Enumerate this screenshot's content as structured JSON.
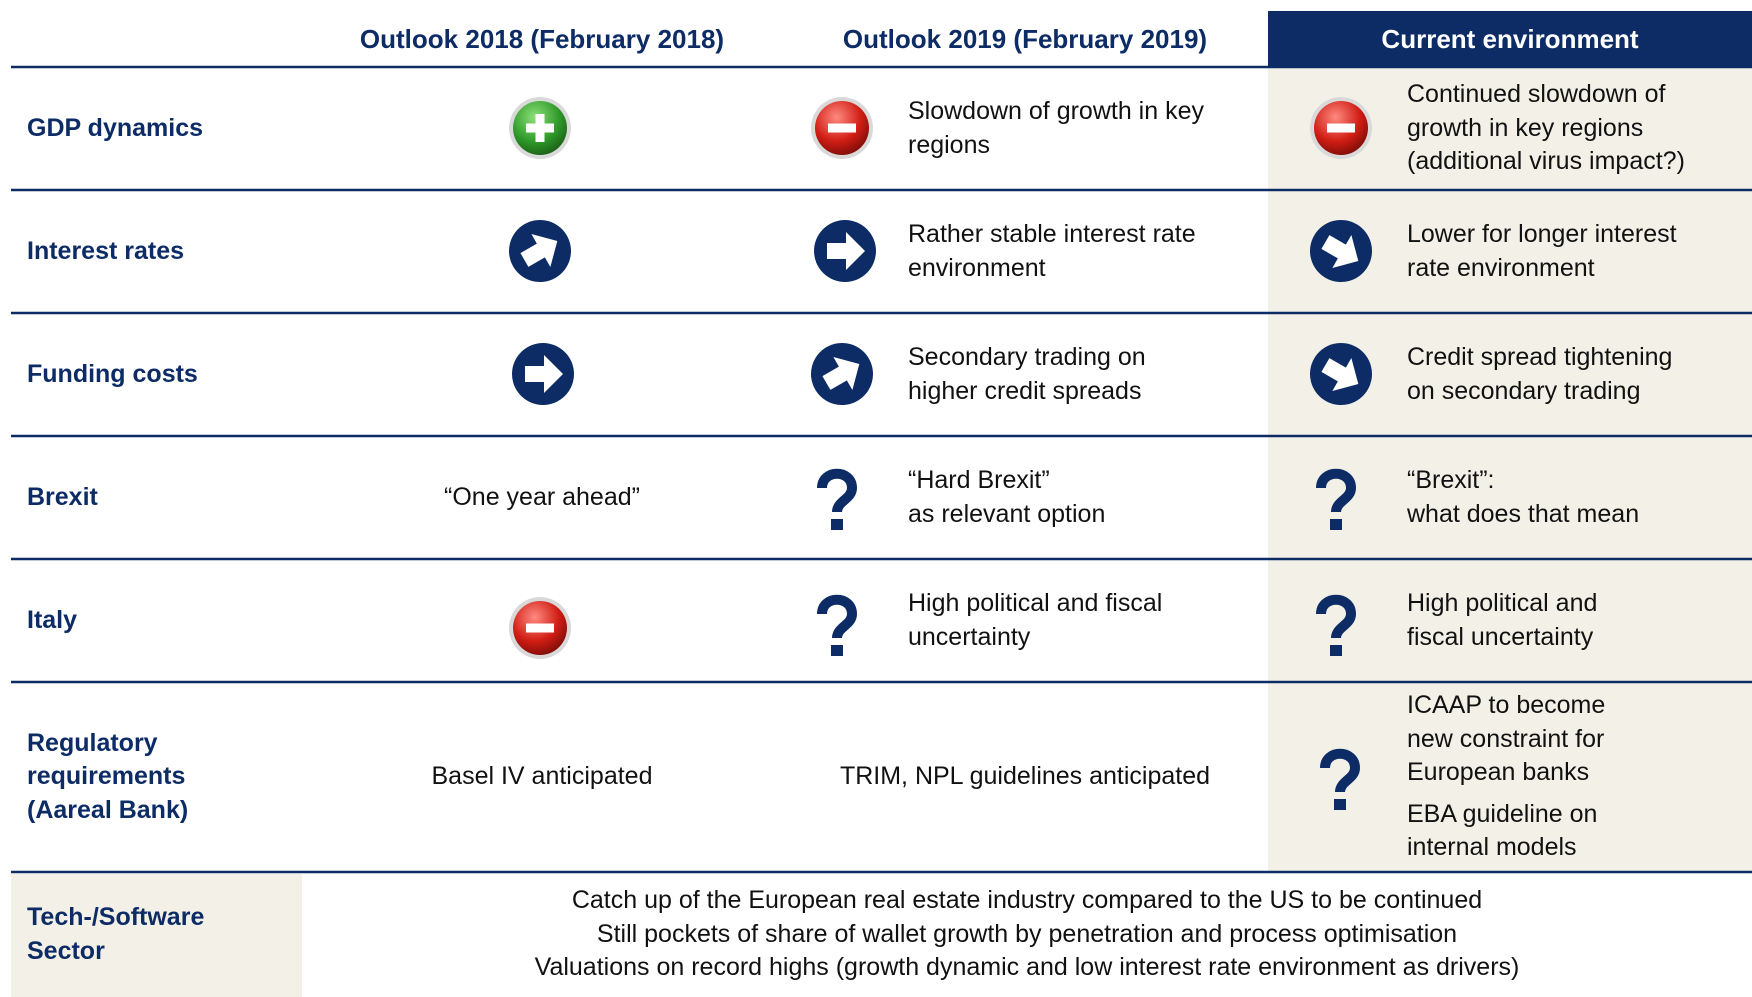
{
  "header": [
    "Outlook 2018 (February 2018)",
    "Outlook 2019 (February 2019)",
    "Current environment"
  ],
  "rows": [
    {
      "label": [
        "GDP dynamics"
      ],
      "cells": [
        [],
        [
          "Slowdown of growth in key",
          "regions"
        ],
        [
          "Continued slowdown of",
          "growth in key regions",
          "(additional virus impact?)"
        ]
      ]
    },
    {
      "label": [
        "Interest rates"
      ],
      "cells": [
        [],
        [
          "Rather stable interest rate",
          "environment"
        ],
        [
          "Lower for longer interest",
          "rate environment"
        ]
      ]
    },
    {
      "label": [
        "Funding costs"
      ],
      "cells": [
        [],
        [
          "Secondary trading on",
          "higher credit spreads"
        ],
        [
          "Credit spread tightening",
          "on secondary trading"
        ]
      ]
    },
    {
      "label": [
        "Brexit"
      ],
      "cells": [
        [
          "“One year ahead”"
        ],
        [
          "“Hard Brexit”",
          "as relevant option"
        ],
        [
          "“Brexit”:",
          "what does that mean"
        ]
      ]
    },
    {
      "label": [
        "Italy"
      ],
      "cells": [
        [],
        [
          "High political and fiscal",
          "uncertainty"
        ],
        [
          "High political and",
          "fiscal uncertainty"
        ]
      ]
    },
    {
      "label": [
        "Regulatory",
        "requirements",
        "(Aareal Bank)"
      ],
      "cells": [
        [
          "Basel IV anticipated"
        ],
        [
          "TRIM, NPL guidelines anticipated"
        ],
        [
          "ICAAP to become",
          "new constraint for",
          "European banks",
          "EBA guideline on",
          "internal models"
        ]
      ]
    }
  ],
  "footer": {
    "label": [
      "Tech-/Software",
      "Sector"
    ],
    "lines": [
      "Catch up of the European real estate industry compared to the US to be continued",
      "Still pockets of share of wallet growth by penetration and process optimisation",
      "Valuations on record highs (growth dynamic and low interest rate environment as drivers)"
    ]
  }
}
